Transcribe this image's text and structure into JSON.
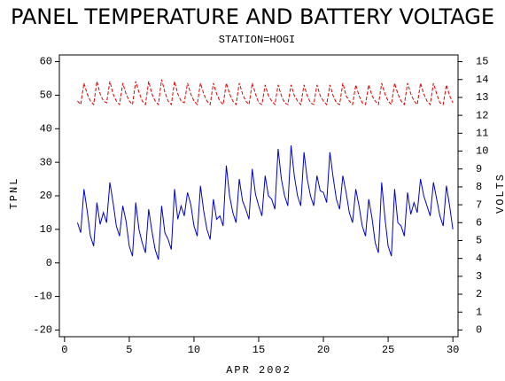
{
  "chart_data": {
    "type": "line",
    "title": "PANEL TEMPERATURE AND BATTERY VOLTAGE",
    "subtitle": "STATION=HOGI",
    "x_label": "APR 2002",
    "y_label": "TPNL",
    "y2_label": "VOLTS",
    "xlim": [
      -0.4,
      30.4
    ],
    "xticks": [
      0,
      5,
      10,
      15,
      20,
      25,
      30
    ],
    "ylim": [
      -22,
      62
    ],
    "yticks": [
      -20,
      -10,
      0,
      10,
      20,
      30,
      40,
      50,
      60
    ],
    "y2lim": [
      -0.375,
      15.375
    ],
    "y2ticks": [
      0,
      1,
      2,
      3,
      4,
      5,
      6,
      7,
      8,
      9,
      10,
      11,
      12,
      13,
      14,
      15
    ],
    "x": [
      1,
      1.25,
      1.5,
      1.75,
      2,
      2.25,
      2.5,
      2.75,
      3,
      3.25,
      3.5,
      3.75,
      4,
      4.25,
      4.5,
      4.75,
      5,
      5.25,
      5.5,
      5.75,
      6,
      6.25,
      6.5,
      6.75,
      7,
      7.25,
      7.5,
      7.75,
      8,
      8.25,
      8.5,
      8.75,
      9,
      9.25,
      9.5,
      9.75,
      10,
      10.25,
      10.5,
      10.75,
      11,
      11.25,
      11.5,
      11.75,
      12,
      12.25,
      12.5,
      12.75,
      13,
      13.25,
      13.5,
      13.75,
      14,
      14.25,
      14.5,
      14.75,
      15,
      15.25,
      15.5,
      15.75,
      16,
      16.25,
      16.5,
      16.75,
      17,
      17.25,
      17.5,
      17.75,
      18,
      18.25,
      18.5,
      18.75,
      19,
      19.25,
      19.5,
      19.75,
      20,
      20.25,
      20.5,
      20.75,
      21,
      21.25,
      21.5,
      21.75,
      22,
      22.25,
      22.5,
      22.75,
      23,
      23.25,
      23.5,
      23.75,
      24,
      24.25,
      24.5,
      24.75,
      25,
      25.25,
      25.5,
      25.75,
      26,
      26.25,
      26.5,
      26.75,
      27,
      27.25,
      27.5,
      27.75,
      28,
      28.25,
      28.5,
      28.75,
      29,
      29.25,
      29.5,
      29.75,
      30
    ],
    "series": [
      {
        "name": "TPNL",
        "color": "#0000cc",
        "axis": "y",
        "dashed": false,
        "values": [
          12,
          9,
          22,
          15.5,
          8,
          5,
          18,
          11.5,
          15,
          12,
          24,
          18,
          11,
          8,
          17,
          12.5,
          5,
          2,
          18,
          10,
          6,
          3,
          16,
          9.5,
          4,
          1,
          17,
          9,
          7,
          4,
          22,
          13,
          17,
          14,
          21,
          17.5,
          11,
          8,
          23,
          15.5,
          10,
          7,
          19,
          13,
          14,
          11,
          29,
          20,
          15,
          12,
          25,
          18.5,
          16,
          13,
          28,
          20.5,
          17,
          14,
          26,
          20,
          19,
          16,
          34,
          25,
          20,
          17,
          35,
          26,
          20,
          17,
          33,
          25,
          20,
          17,
          26,
          21.5,
          21,
          18,
          33,
          25.5,
          19,
          16,
          26,
          21,
          15,
          12,
          22,
          17,
          11,
          8,
          19,
          13.5,
          6,
          3,
          24,
          13.5,
          5,
          2,
          22,
          12,
          11,
          8,
          21,
          14.5,
          18,
          15,
          25,
          20,
          17,
          14,
          24,
          19,
          14,
          11,
          23,
          17,
          10
        ]
      },
      {
        "name": "VOLTS",
        "color": "#dd0000",
        "axis": "y2",
        "dashed": true,
        "values": [
          12.8,
          12.6,
          13.8,
          13.2,
          12.8,
          12.6,
          13.9,
          13.2,
          12.8,
          12.7,
          13.9,
          13.2,
          12.8,
          12.6,
          13.8,
          13.2,
          12.8,
          12.6,
          13.9,
          13.3,
          12.8,
          12.6,
          13.9,
          13.2,
          12.8,
          12.6,
          14.0,
          13.3,
          12.8,
          12.6,
          13.9,
          13.2,
          12.8,
          12.7,
          13.8,
          13.2,
          12.8,
          12.6,
          13.8,
          13.2,
          12.8,
          12.6,
          13.8,
          13.2,
          12.8,
          12.6,
          13.8,
          13.2,
          12.8,
          12.6,
          13.8,
          13.2,
          12.8,
          12.6,
          13.8,
          13.2,
          12.7,
          12.6,
          13.7,
          13.1,
          12.8,
          12.6,
          13.7,
          13.1,
          12.7,
          12.6,
          13.7,
          13.1,
          12.8,
          12.6,
          13.7,
          13.1,
          12.7,
          12.6,
          13.7,
          13.1,
          12.8,
          12.6,
          13.7,
          13.1,
          12.7,
          12.6,
          13.8,
          13.1,
          12.8,
          12.6,
          13.7,
          13.1,
          12.7,
          12.6,
          13.7,
          13.1,
          12.8,
          12.6,
          13.8,
          13.2,
          12.8,
          12.6,
          13.8,
          13.2,
          12.8,
          12.6,
          13.8,
          13.2,
          12.8,
          12.6,
          13.8,
          13.2,
          12.8,
          12.6,
          13.8,
          13.2,
          12.7,
          12.6,
          13.7,
          13.1,
          12.7
        ]
      }
    ]
  }
}
